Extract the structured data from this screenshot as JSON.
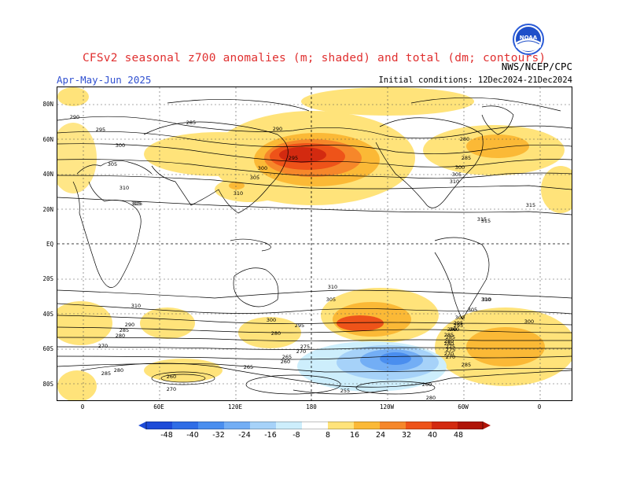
{
  "header": {
    "title": "CFSv2 seasonal z700 anomalies (m; shaded) and total (dm; contours)",
    "season": "Apr-May-Jun 2025",
    "initial_conditions": "Initial conditions: 12Dec2024-21Dec2024",
    "agency": "NWS/NCEP/CPC",
    "logo_text": "NOAA"
  },
  "map": {
    "lat_labels": [
      "80N",
      "60N",
      "40N",
      "20N",
      "EQ",
      "20S",
      "40S",
      "60S",
      "80S"
    ],
    "lon_labels": [
      "0",
      "60E",
      "120E",
      "180",
      "120W",
      "60W",
      "0"
    ],
    "contour_labels": [
      {
        "text": "290"
      },
      {
        "text": "295"
      },
      {
        "text": "300"
      },
      {
        "text": "305"
      },
      {
        "text": "310"
      },
      {
        "text": "315"
      },
      {
        "text": "285"
      },
      {
        "text": "290"
      },
      {
        "text": "295"
      },
      {
        "text": "300"
      },
      {
        "text": "305"
      },
      {
        "text": "310"
      },
      {
        "text": "280"
      },
      {
        "text": "285"
      },
      {
        "text": "300"
      },
      {
        "text": "305"
      },
      {
        "text": "310"
      },
      {
        "text": "315"
      },
      {
        "text": "315"
      },
      {
        "text": "315"
      },
      {
        "text": "310"
      },
      {
        "text": "310"
      },
      {
        "text": "305"
      },
      {
        "text": "300"
      },
      {
        "text": "295"
      },
      {
        "text": "310"
      },
      {
        "text": "305"
      },
      {
        "text": "300"
      },
      {
        "text": "295"
      },
      {
        "text": "290"
      },
      {
        "text": "285"
      },
      {
        "text": "280"
      },
      {
        "text": "275"
      },
      {
        "text": "270"
      },
      {
        "text": "290"
      },
      {
        "text": "285"
      },
      {
        "text": "280"
      },
      {
        "text": "270"
      },
      {
        "text": "280"
      },
      {
        "text": "275"
      },
      {
        "text": "270"
      },
      {
        "text": "265"
      },
      {
        "text": "260"
      },
      {
        "text": "280"
      },
      {
        "text": "265"
      },
      {
        "text": "260"
      },
      {
        "text": "270"
      },
      {
        "text": "285"
      },
      {
        "text": "255"
      },
      {
        "text": "260"
      },
      {
        "text": "280"
      },
      {
        "text": "300"
      },
      {
        "text": "295"
      },
      {
        "text": "290"
      },
      {
        "text": "285"
      },
      {
        "text": "280"
      },
      {
        "text": "275"
      },
      {
        "text": "270"
      },
      {
        "text": "285"
      },
      {
        "text": "315"
      },
      {
        "text": "310"
      }
    ]
  },
  "colorbar": {
    "levels": [
      "-48",
      "-40",
      "-32",
      "-24",
      "-16",
      "-8",
      "8",
      "16",
      "24",
      "32",
      "40",
      "48"
    ],
    "colors": [
      "#1e4bd8",
      "#2f6de6",
      "#4a8eef",
      "#73aef5",
      "#a6d2f9",
      "#cdeefc",
      "#ffffff",
      "#ffe37a",
      "#fbb936",
      "#f6872a",
      "#ee5319",
      "#d32a10",
      "#b01408"
    ]
  }
}
